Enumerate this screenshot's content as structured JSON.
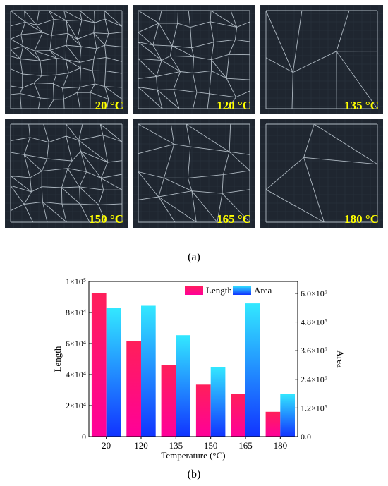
{
  "figure": {
    "panels": [
      {
        "label": "20 °C",
        "density": "very-high"
      },
      {
        "label": "120 °C",
        "density": "high"
      },
      {
        "label": "135 °C",
        "density": "low"
      },
      {
        "label": "150 °C",
        "density": "high"
      },
      {
        "label": "165 °C",
        "density": "medium"
      },
      {
        "label": "180 °C",
        "density": "very-low"
      }
    ],
    "caption_a": "(a)",
    "caption_b": "(b)",
    "panel_bg": "#1f2630",
    "line_color": "#c9d3dc",
    "label_color": "#ffff00"
  },
  "chart_data": {
    "type": "bar",
    "categories": [
      "20",
      "120",
      "135",
      "150",
      "165",
      "180"
    ],
    "xlabel": "Temperature (°C)",
    "ylabel_left": "Length",
    "ylabel_right": "Area",
    "series": [
      {
        "name": "Length",
        "axis": "left",
        "values": [
          92500,
          61500,
          46000,
          33500,
          27500,
          16000
        ],
        "color_top": "#ff1f5a",
        "color_bottom": "#ff0099"
      },
      {
        "name": "Area",
        "axis": "right",
        "values": [
          5400000,
          5480000,
          4250000,
          2920000,
          5580000,
          1800000
        ],
        "color_top": "#33e8ff",
        "color_bottom": "#1133ff"
      }
    ],
    "ylim_left": [
      0,
      100000
    ],
    "ylim_right": [
      0,
      6500000
    ],
    "yticks_left": [
      "0",
      "2×10⁴",
      "4×10⁴",
      "6×10⁴",
      "8×10⁴",
      "1×10⁵"
    ],
    "yticks_right": [
      "0.0",
      "1.2×10⁶",
      "2.4×10⁶",
      "3.6×10⁶",
      "4.8×10⁶",
      "6.0×10⁶"
    ],
    "legend": "top-right",
    "grid": false
  }
}
